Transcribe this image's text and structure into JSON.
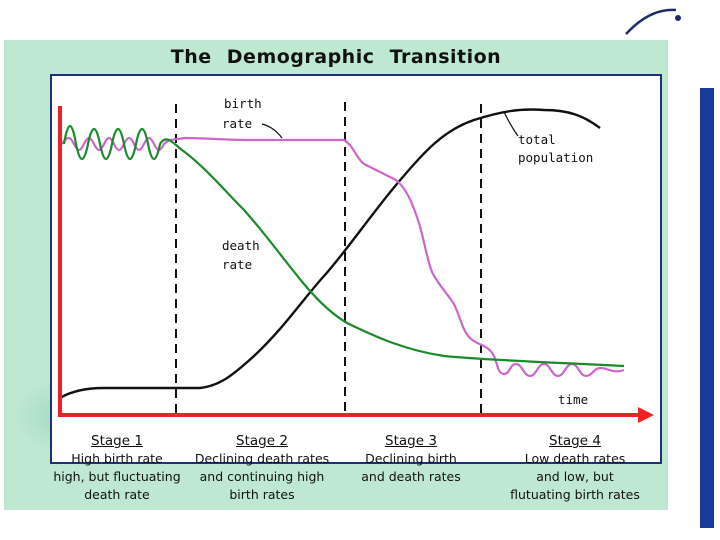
{
  "title": "The Demographic Transition",
  "labels": {
    "birth_rate": [
      "birth",
      "rate"
    ],
    "death_rate": [
      "death",
      "rate"
    ],
    "total_population": [
      "total",
      "population"
    ],
    "time": "time"
  },
  "stages": [
    {
      "name": "Stage 1",
      "lines": [
        "High birth rate",
        "high, but fluctuating",
        "death rate"
      ]
    },
    {
      "name": "Stage 2",
      "lines": [
        "Declining death rates",
        "and continuing high",
        "birth rates"
      ]
    },
    {
      "name": "Stage 3",
      "lines": [
        "Declining birth",
        "and death rates"
      ]
    },
    {
      "name": "Stage 4",
      "lines": [
        "Low death rates",
        "and low, but",
        "flutuating birth rates"
      ]
    }
  ],
  "colors": {
    "birth_rate": "#cc66cc",
    "death_rate": "#1a8a2a",
    "total_population": "#111111",
    "axes": "#ee2222",
    "frame": "#1f2f7a",
    "background": "#bfe8d2",
    "side_bar": "#1a3a9a"
  },
  "icons": {
    "axis_arrow": "arrow-right-icon"
  }
}
